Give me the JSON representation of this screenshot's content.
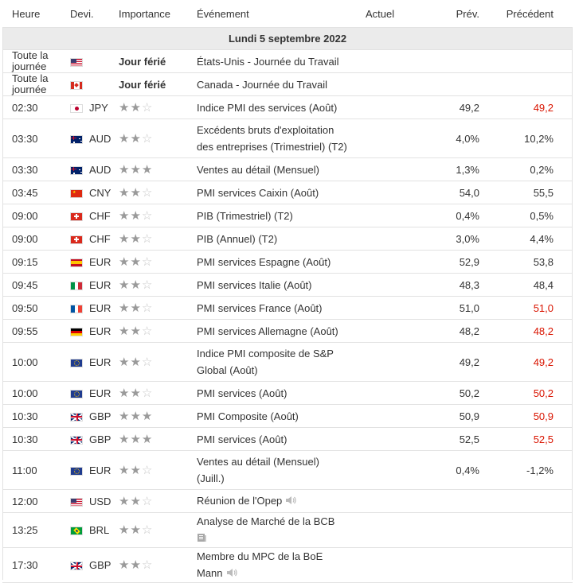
{
  "header": {
    "time": "Heure",
    "currency": "Devi.",
    "importance": "Importance",
    "event": "Événement",
    "actual": "Actuel",
    "forecast": "Prév.",
    "previous": "Précédent"
  },
  "day_label": "Lundi 5 septembre 2022",
  "colors": {
    "negative": "#d91400",
    "star_on": "#9a9a9a",
    "star_off": "#c8c8c8"
  },
  "rows": [
    {
      "time": "Toute la journée",
      "flag": "us",
      "currency": "",
      "importance": "Jour férié",
      "event": "États-Unis - Journée du Travail",
      "actual": "",
      "forecast": "",
      "previous": "",
      "previous_red": false
    },
    {
      "time": "Toute la journée",
      "flag": "ca",
      "currency": "",
      "importance": "Jour férié",
      "event": "Canada - Journée du Travail",
      "actual": "",
      "forecast": "",
      "previous": "",
      "previous_red": false
    },
    {
      "time": "02:30",
      "flag": "jp",
      "currency": "JPY",
      "stars": 2,
      "event": "Indice PMI des services (Août)",
      "actual": "",
      "forecast": "49,2",
      "previous": "49,2",
      "previous_red": true
    },
    {
      "time": "03:30",
      "flag": "au",
      "currency": "AUD",
      "stars": 2,
      "event": "Excédents bruts d'exploitation des entreprises (Trimestriel) (T2)",
      "actual": "",
      "forecast": "4,0%",
      "previous": "10,2%",
      "previous_red": false
    },
    {
      "time": "03:30",
      "flag": "au",
      "currency": "AUD",
      "stars": 3,
      "event": "Ventes au détail (Mensuel)",
      "actual": "",
      "forecast": "1,3%",
      "previous": "0,2%",
      "previous_red": false
    },
    {
      "time": "03:45",
      "flag": "cn",
      "currency": "CNY",
      "stars": 2,
      "event": "PMI services Caixin (Août)",
      "actual": "",
      "forecast": "54,0",
      "previous": "55,5",
      "previous_red": false
    },
    {
      "time": "09:00",
      "flag": "ch",
      "currency": "CHF",
      "stars": 2,
      "event": "PIB (Trimestriel) (T2)",
      "actual": "",
      "forecast": "0,4%",
      "previous": "0,5%",
      "previous_red": false
    },
    {
      "time": "09:00",
      "flag": "ch",
      "currency": "CHF",
      "stars": 2,
      "event": "PIB (Annuel) (T2)",
      "actual": "",
      "forecast": "3,0%",
      "previous": "4,4%",
      "previous_red": false
    },
    {
      "time": "09:15",
      "flag": "es",
      "currency": "EUR",
      "stars": 2,
      "event": "PMI services Espagne (Août)",
      "actual": "",
      "forecast": "52,9",
      "previous": "53,8",
      "previous_red": false
    },
    {
      "time": "09:45",
      "flag": "it",
      "currency": "EUR",
      "stars": 2,
      "event": "PMI services Italie (Août)",
      "actual": "",
      "forecast": "48,3",
      "previous": "48,4",
      "previous_red": false
    },
    {
      "time": "09:50",
      "flag": "fr",
      "currency": "EUR",
      "stars": 2,
      "event": "PMI services France (Août)",
      "actual": "",
      "forecast": "51,0",
      "previous": "51,0",
      "previous_red": true
    },
    {
      "time": "09:55",
      "flag": "de",
      "currency": "EUR",
      "stars": 2,
      "event": "PMI services Allemagne (Août)",
      "actual": "",
      "forecast": "48,2",
      "previous": "48,2",
      "previous_red": true
    },
    {
      "time": "10:00",
      "flag": "eu",
      "currency": "EUR",
      "stars": 2,
      "event": "Indice PMI composite de S&P Global (Août)",
      "actual": "",
      "forecast": "49,2",
      "previous": "49,2",
      "previous_red": true
    },
    {
      "time": "10:00",
      "flag": "eu",
      "currency": "EUR",
      "stars": 2,
      "event": "PMI services (Août)",
      "actual": "",
      "forecast": "50,2",
      "previous": "50,2",
      "previous_red": true
    },
    {
      "time": "10:30",
      "flag": "gb",
      "currency": "GBP",
      "stars": 3,
      "event": "PMI Composite (Août)",
      "actual": "",
      "forecast": "50,9",
      "previous": "50,9",
      "previous_red": true
    },
    {
      "time": "10:30",
      "flag": "gb",
      "currency": "GBP",
      "stars": 3,
      "event": "PMI services (Août)",
      "actual": "",
      "forecast": "52,5",
      "previous": "52,5",
      "previous_red": true
    },
    {
      "time": "11:00",
      "flag": "eu",
      "currency": "EUR",
      "stars": 2,
      "event": "Ventes au détail (Mensuel) (Juill.)",
      "actual": "",
      "forecast": "0,4%",
      "previous": "-1,2%",
      "previous_red": false
    },
    {
      "time": "12:00",
      "flag": "us",
      "currency": "USD",
      "stars": 2,
      "event": "Réunion de l'Opep",
      "event_icon": "speaker",
      "actual": "",
      "forecast": "",
      "previous": "",
      "previous_red": false
    },
    {
      "time": "13:25",
      "flag": "br",
      "currency": "BRL",
      "stars": 2,
      "event": "Analyse de Marché de la BCB",
      "event_icon": "report",
      "actual": "",
      "forecast": "",
      "previous": "",
      "previous_red": false
    },
    {
      "time": "17:30",
      "flag": "gb",
      "currency": "GBP",
      "stars": 2,
      "event": "Membre du MPC de la BoE Mann",
      "event_icon": "speaker",
      "actual": "",
      "forecast": "",
      "previous": "",
      "previous_red": false
    }
  ]
}
